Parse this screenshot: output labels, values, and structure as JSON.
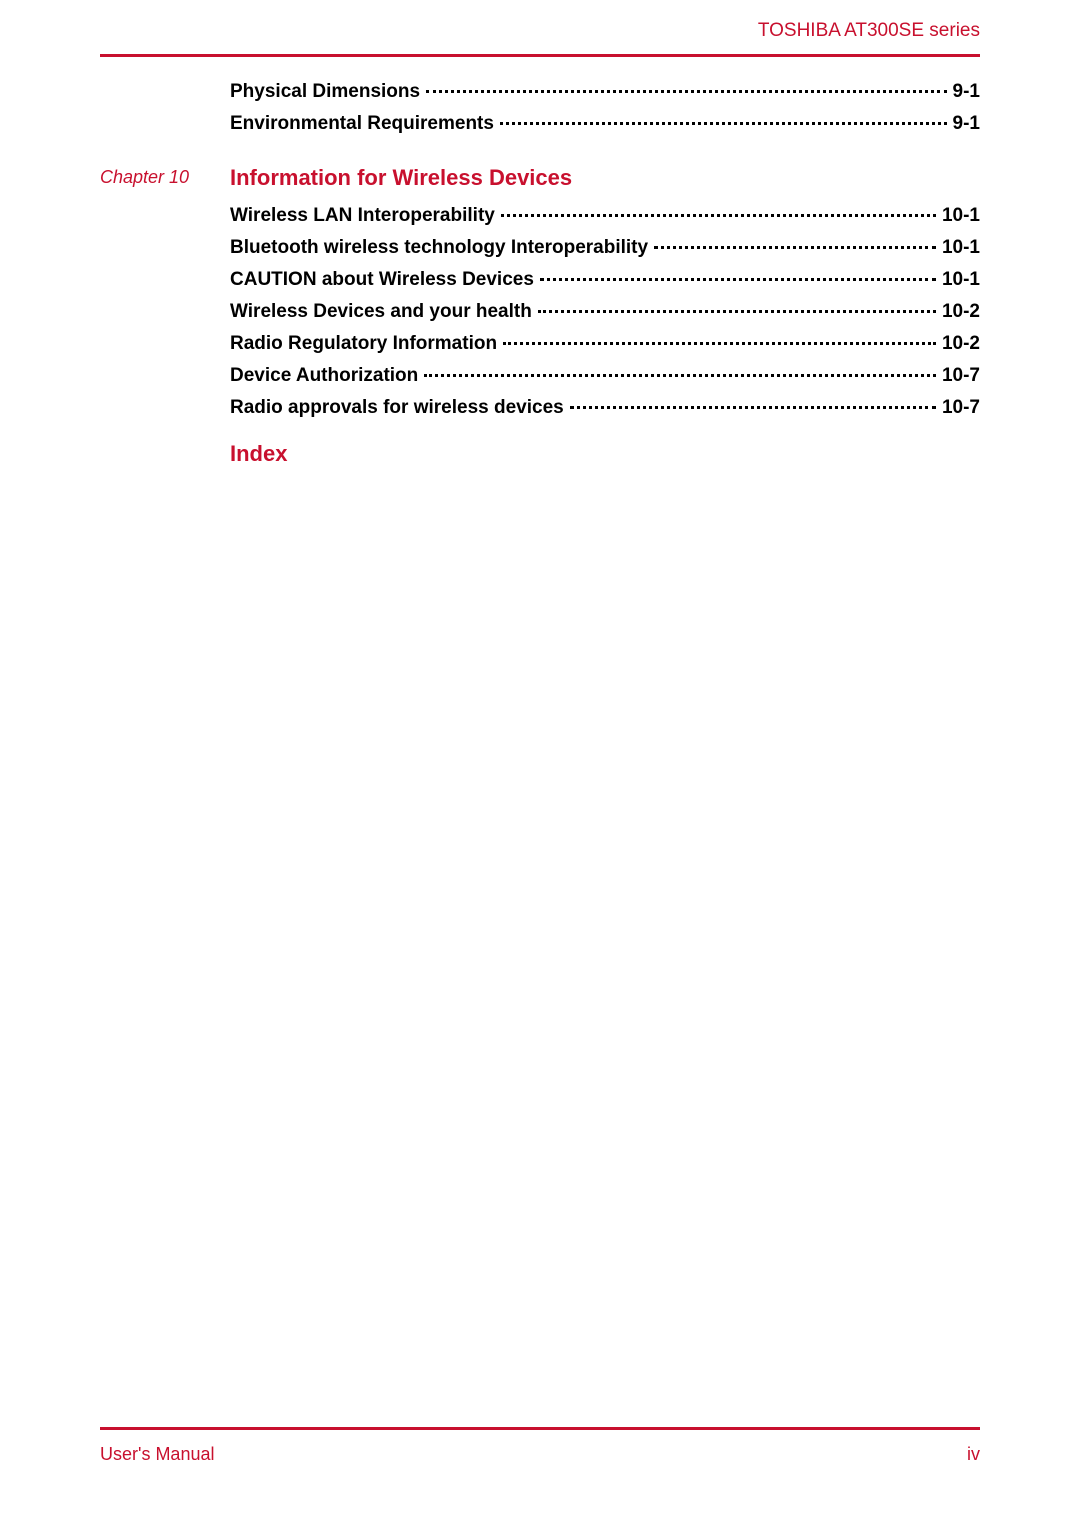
{
  "header": {
    "product_name": "TOSHIBA AT300SE series"
  },
  "colors": {
    "accent": "#c8102e",
    "text": "#000000",
    "background": "#ffffff"
  },
  "pre_chapter_entries": [
    {
      "title": "Physical Dimensions",
      "page": "9-1"
    },
    {
      "title": "Environmental Requirements",
      "page": "9-1"
    }
  ],
  "chapter": {
    "label": "Chapter 10",
    "heading": "Information for Wireless Devices",
    "entries": [
      {
        "title": "Wireless LAN Interoperability",
        "page": "10-1"
      },
      {
        "title": "Bluetooth wireless technology Interoperability",
        "page": "10-1"
      },
      {
        "title": "CAUTION about Wireless Devices",
        "page": "10-1"
      },
      {
        "title": "Wireless Devices and your health",
        "page": "10-2"
      },
      {
        "title": "Radio Regulatory Information",
        "page": "10-2"
      },
      {
        "title": "Device Authorization",
        "page": "10-7"
      },
      {
        "title": "Radio approvals for wireless devices",
        "page": "10-7"
      }
    ]
  },
  "index_label": "Index",
  "footer": {
    "left": "User's Manual",
    "right": "iv"
  }
}
